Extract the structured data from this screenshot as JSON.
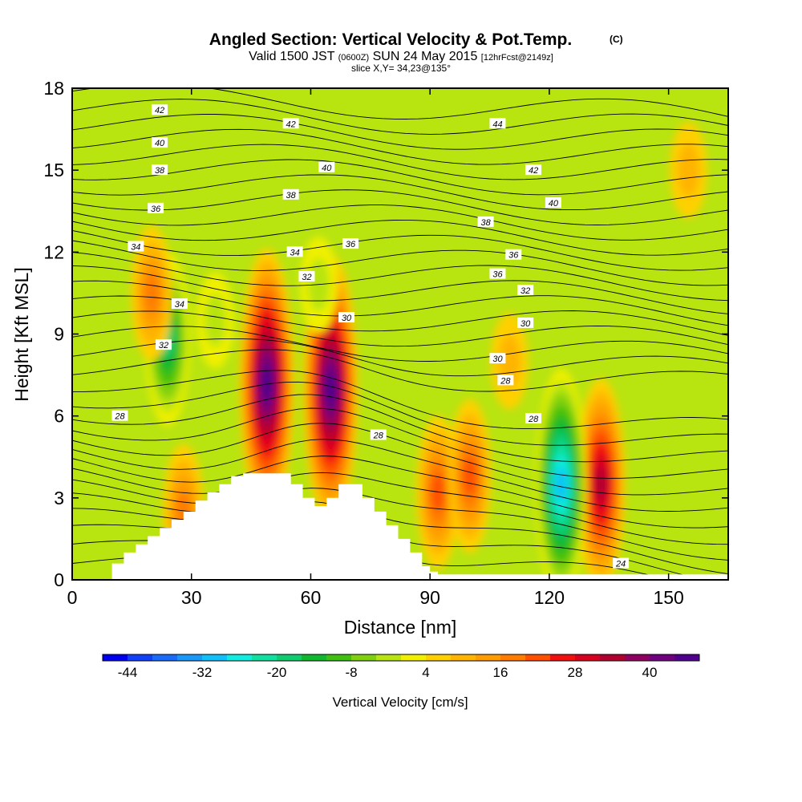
{
  "title": "Angled Section: Vertical Velocity & Pot.Temp.",
  "title_mark": "(C)",
  "subtitle": {
    "valid": "Valid 1500 JST",
    "utc": "(0600Z)",
    "date": "SUN 24 May 2015",
    "forecast": "[12hrFcst@2149z]"
  },
  "slice_label": "slice X,Y= 34,23@135°",
  "chart_data": {
    "type": "heatmap",
    "title": "Angled Section: Vertical Velocity & Pot.Temp.",
    "xlabel": "Distance [nm]",
    "ylabel": "Height [Kft MSL]",
    "xlim": [
      0,
      165
    ],
    "ylim": [
      0,
      18
    ],
    "x_ticks": [
      0,
      30,
      60,
      90,
      120,
      150
    ],
    "y_ticks": [
      0,
      3,
      6,
      9,
      12,
      15,
      18
    ],
    "colorbar": {
      "label": "Vertical Velocity [cm/s]",
      "range": [
        -48,
        48
      ],
      "step": 4,
      "tick_values": [
        -44,
        -32,
        -20,
        -8,
        4,
        16,
        28,
        40
      ],
      "colors": [
        "#0000f0",
        "#1040f8",
        "#1a6cf8",
        "#1a98f8",
        "#10c0f8",
        "#10ece0",
        "#10e0a0",
        "#10cc70",
        "#10b830",
        "#40c010",
        "#80d010",
        "#b8e410",
        "#f0f000",
        "#ffd000",
        "#ffb400",
        "#ff9c00",
        "#ff7c00",
        "#ff5000",
        "#f01010",
        "#d80020",
        "#b00030",
        "#900060",
        "#700080",
        "#50008c"
      ]
    },
    "theta_contour_labels": [
      "42",
      "42",
      "44",
      "40",
      "40",
      "42",
      "38",
      "38",
      "40",
      "36",
      "36",
      "38",
      "34",
      "36",
      "34",
      "36",
      "32",
      "32",
      "34",
      "30",
      "30",
      "32",
      "30",
      "28",
      "28",
      "28",
      "28",
      "24"
    ],
    "terrain_profile": {
      "x": [
        0,
        10,
        13,
        16,
        19,
        22,
        25,
        28,
        31,
        34,
        37,
        40,
        43,
        46,
        49,
        52,
        55,
        58,
        61,
        64,
        67,
        70,
        73,
        76,
        79,
        82,
        85,
        88,
        90,
        92,
        165
      ],
      "y": [
        0,
        0.6,
        1.0,
        1.3,
        1.6,
        1.9,
        2.2,
        2.5,
        2.9,
        3.2,
        3.5,
        3.8,
        3.9,
        3.9,
        3.9,
        3.9,
        3.5,
        3.0,
        2.7,
        3.0,
        3.5,
        3.5,
        3.0,
        2.5,
        2.0,
        1.5,
        1.0,
        0.5,
        0.3,
        0.2,
        0.2
      ]
    },
    "velocity_cells": [
      {
        "x": 49,
        "y": 7.2,
        "value": 44
      },
      {
        "x": 65,
        "y": 7.0,
        "value": 44
      },
      {
        "x": 133,
        "y": 3.5,
        "value": 32
      },
      {
        "x": 92,
        "y": 3.2,
        "value": 20
      },
      {
        "x": 100,
        "y": 3.8,
        "value": 20
      },
      {
        "x": 123,
        "y": 3.5,
        "value": -36
      },
      {
        "x": 24,
        "y": 8.8,
        "value": -24
      },
      {
        "x": 36,
        "y": 9.5,
        "value": -8
      },
      {
        "x": 62,
        "y": 10.8,
        "value": -8
      },
      {
        "x": 20,
        "y": 10.5,
        "value": 16
      },
      {
        "x": 28,
        "y": 2.5,
        "value": 16
      },
      {
        "x": 110,
        "y": 8.0,
        "value": 8
      },
      {
        "x": 155,
        "y": 15,
        "value": 8
      }
    ]
  }
}
